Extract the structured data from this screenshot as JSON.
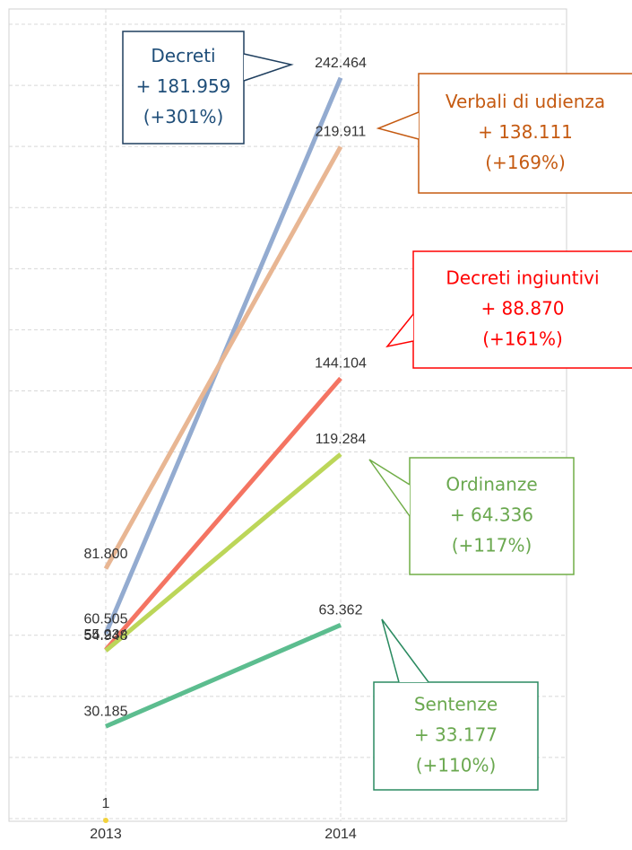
{
  "chart_data": {
    "type": "line",
    "categories": [
      "2013",
      "2014"
    ],
    "ylim": [
      0,
      265000
    ],
    "yticks": [
      0,
      20000,
      40000,
      60000,
      80000,
      100000,
      120000,
      140000,
      160000,
      180000,
      200000,
      220000,
      240000,
      260000
    ],
    "grid": true,
    "series": [
      {
        "name": "Decreti",
        "color": "#93abd0",
        "values": [
          60505,
          242464
        ],
        "value_labels": [
          "60.505",
          "242.464"
        ],
        "change_label": "+ 181.959",
        "pct_label": "(+301%)",
        "label_color": "#1f4e79",
        "border_color": "#1f3f5f"
      },
      {
        "name": "Verbali di udienza",
        "color": "#e8b693",
        "values": [
          81800,
          219911
        ],
        "value_labels": [
          "81.800",
          "219.911"
        ],
        "change_label": "+ 138.111",
        "pct_label": "(+169%)",
        "label_color": "#c55a11",
        "border_color": "#c55a11"
      },
      {
        "name": "Decreti ingiuntivi",
        "color": "#f47462",
        "values": [
          55234,
          144104
        ],
        "value_labels": [
          "55.234",
          "144.104"
        ],
        "change_label": "+ 88.870",
        "pct_label": "(+161%)",
        "label_color": "#ff0000",
        "border_color": "#ff0000"
      },
      {
        "name": "Ordinanze",
        "color": "#bcd659",
        "values": [
          54948,
          119284
        ],
        "value_labels": [
          "54.948",
          "119.284"
        ],
        "change_label": "+ 64.336",
        "pct_label": "(+117%)",
        "label_color": "#6aa84f",
        "border_color": "#70ad47"
      },
      {
        "name": "Sentenze",
        "color": "#5cbd8f",
        "values": [
          30185,
          63362
        ],
        "value_labels": [
          "30.185",
          "63.362"
        ],
        "change_label": "+ 33.177",
        "pct_label": "(+110%)",
        "label_color": "#6aa84f",
        "border_color": "#2a8a60"
      },
      {
        "color": "#f2d23c",
        "values": [
          1,
          null
        ],
        "value_labels": [
          "1",
          null
        ]
      }
    ]
  }
}
